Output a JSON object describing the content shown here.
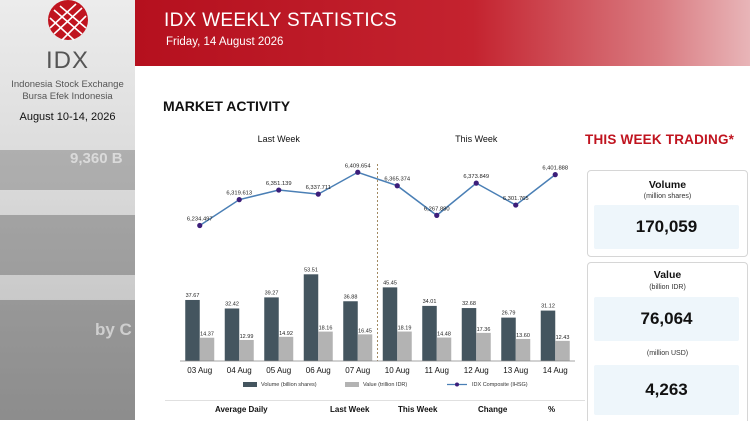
{
  "sidebar": {
    "logo_text": "IDX",
    "org_name_en": "Indonesia Stock Exchange",
    "org_name_id": "Bursa Efek Indonesia",
    "period": "August 10-14, 2026",
    "logo_color": "#c0141f"
  },
  "header": {
    "title": "IDX WEEKLY STATISTICS",
    "date": "Friday, 14 August 2026",
    "color": "#b5101e"
  },
  "main": {
    "section_title": "MARKET ACTIVITY"
  },
  "chart_data": {
    "type": "bar",
    "group_labels": [
      "Last Week",
      "This Week"
    ],
    "categories": [
      "03 Aug",
      "04 Aug",
      "05 Aug",
      "06 Aug",
      "07 Aug",
      "10 Aug",
      "11 Aug",
      "12 Aug",
      "13 Aug",
      "14 Aug"
    ],
    "series": [
      {
        "name": "Volume (billion shares)",
        "kind": "bar",
        "color": "#44555f",
        "values": [
          37.67,
          32.42,
          39.27,
          53.51,
          36.88,
          45.45,
          34.01,
          32.68,
          26.79,
          31.12
        ],
        "labels": [
          "37.67",
          "32.42",
          "39.27",
          "53.51",
          "36.88",
          "45.45",
          "34.01",
          "32.68",
          "26.79",
          "31.12"
        ]
      },
      {
        "name": "Value (trillion IDR)",
        "kind": "bar",
        "color": "#b3b3b3",
        "values": [
          14.37,
          12.99,
          14.92,
          18.16,
          16.45,
          18.19,
          14.48,
          17.36,
          13.6,
          12.43
        ],
        "labels": [
          "14.37",
          "12.99",
          "14.92",
          "18.16",
          "16.45",
          "18.19",
          "14.48",
          "17.36",
          "13.60",
          "12.43"
        ]
      },
      {
        "name": "IDX Composite (IHSG)",
        "kind": "line",
        "color": "#4a7fb5",
        "marker_color": "#3c1e7a",
        "values": [
          6234.497,
          6319.613,
          6351.139,
          6337.711,
          6409.654,
          6365.374,
          6267.88,
          6373.849,
          6301.765,
          6401.888
        ],
        "labels": [
          "6,234.497",
          "6,319.613",
          "6,351.139",
          "6,337.711",
          "6,409.654",
          "6,365.374",
          "6,267.880",
          "6,373.849",
          "6,301.765",
          "6,401.888"
        ]
      }
    ]
  },
  "this_week_trading": {
    "title": "THIS WEEK TRADING*",
    "volume": {
      "label": "Volume",
      "unit": "(million shares)",
      "value": "170,059"
    },
    "value": {
      "label": "Value",
      "unit_idr": "(billion IDR)",
      "value_idr": "76,064",
      "unit_usd": "(million USD)",
      "value_usd": "4,263"
    }
  },
  "table": {
    "headers": [
      "Average Daily",
      "Last Week",
      "This Week",
      "Change",
      "%"
    ]
  }
}
